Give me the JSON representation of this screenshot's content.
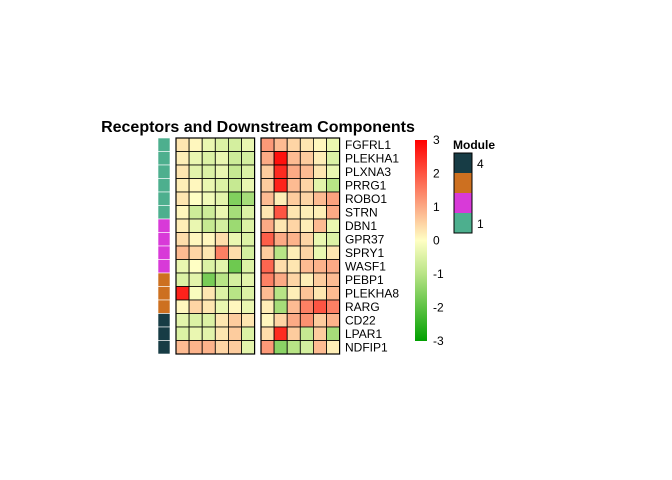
{
  "chart_data": {
    "type": "heatmap",
    "title": "Receptors and Downstream Components",
    "rows": [
      "FGFRL1",
      "PLEKHA1",
      "PLXNA3",
      "PRRG1",
      "ROBO1",
      "STRN",
      "DBN1",
      "GPR37",
      "SPRY1",
      "WASF1",
      "PEBP1",
      "PLEKHA8",
      "RARG",
      "CD22",
      "LPAR1",
      "NDFIP1"
    ],
    "column_groups": [
      6,
      6
    ],
    "values": [
      [
        0.3,
        0.1,
        -0.3,
        -0.5,
        -0.6,
        -0.3,
        1.2,
        0.8,
        0.5,
        0.3,
        0.1,
        -0.3
      ],
      [
        0.2,
        -0.3,
        -0.5,
        -0.3,
        -0.7,
        -0.6,
        1.0,
        2.8,
        0.8,
        0.6,
        0.2,
        -0.5
      ],
      [
        0.3,
        -0.4,
        -0.5,
        -0.3,
        -0.8,
        -0.5,
        0.6,
        2.5,
        1.0,
        0.8,
        0.3,
        -0.3
      ],
      [
        0.2,
        0.1,
        -0.3,
        -0.5,
        -0.8,
        -0.3,
        0.6,
        2.6,
        0.8,
        0.5,
        -0.4,
        -1.0
      ],
      [
        0.3,
        0.0,
        -0.2,
        -0.4,
        -1.6,
        -1.2,
        0.8,
        0.2,
        0.6,
        0.5,
        0.8,
        1.1
      ],
      [
        0.1,
        -0.7,
        -0.7,
        -0.3,
        -1.2,
        -0.5,
        0.3,
        2.0,
        0.3,
        0.2,
        0.2,
        1.0
      ],
      [
        0.2,
        -0.3,
        -0.8,
        -0.6,
        -1.3,
        -0.5,
        1.0,
        0.3,
        0.5,
        0.2,
        0.8,
        -0.3
      ],
      [
        0.4,
        0.1,
        0.1,
        0.4,
        -0.3,
        -0.5,
        1.9,
        1.0,
        0.9,
        0.5,
        -0.3,
        -0.5
      ],
      [
        0.8,
        0.5,
        0.3,
        1.5,
        0.4,
        -0.6,
        0.6,
        -1.0,
        0.2,
        0.5,
        -0.3,
        0.3
      ],
      [
        -0.3,
        0.0,
        -0.5,
        -0.4,
        -1.8,
        -0.5,
        1.8,
        0.4,
        0.3,
        0.8,
        0.9,
        1.0
      ],
      [
        -0.5,
        -0.4,
        -1.7,
        -1.0,
        -0.6,
        -0.4,
        1.5,
        1.0,
        0.5,
        0.2,
        0.6,
        0.8
      ],
      [
        2.6,
        -0.1,
        0.3,
        -0.5,
        -1.0,
        -0.5,
        0.8,
        -1.0,
        0.2,
        0.7,
        0.3,
        0.8
      ],
      [
        0.1,
        0.5,
        0.3,
        -0.3,
        0.1,
        -0.3,
        0.2,
        -1.2,
        0.8,
        1.5,
        2.0,
        1.5
      ],
      [
        -0.4,
        -0.5,
        -0.5,
        0.3,
        0.6,
        0.3,
        0.1,
        0.5,
        1.0,
        1.3,
        0.6,
        0.9
      ],
      [
        -0.5,
        -0.3,
        -0.4,
        0.3,
        0.6,
        -0.5,
        0.4,
        2.5,
        0.6,
        -0.8,
        0.6,
        -1.2
      ],
      [
        0.8,
        0.9,
        0.9,
        0.5,
        0.6,
        -0.4,
        1.2,
        -1.5,
        -1.0,
        -0.6,
        0.8,
        0.2
      ]
    ],
    "annotation": {
      "name": "Module",
      "row_modules": [
        1,
        1,
        1,
        1,
        1,
        1,
        2,
        2,
        2,
        2,
        3,
        3,
        3,
        4,
        4,
        4
      ],
      "module_colors": {
        "1": "#4daf8e",
        "2": "#d83ad8",
        "3": "#cd7020",
        "4": "#173c45"
      },
      "legend_order": [
        4,
        3,
        2,
        1
      ],
      "legend_labels": [
        "4",
        "",
        "",
        "1"
      ]
    },
    "color_scale": {
      "min": -3,
      "max": 3,
      "stops": [
        {
          "value": -3,
          "color": "#00a000"
        },
        {
          "value": -1,
          "color": "#b8e486"
        },
        {
          "value": 0,
          "color": "#ffffc4"
        },
        {
          "value": 1,
          "color": "#fcaa85"
        },
        {
          "value": 3,
          "color": "#ff0000"
        }
      ],
      "ticks": [
        3,
        2,
        1,
        0,
        -1,
        -2,
        -3
      ]
    },
    "border_color": "#000000"
  }
}
